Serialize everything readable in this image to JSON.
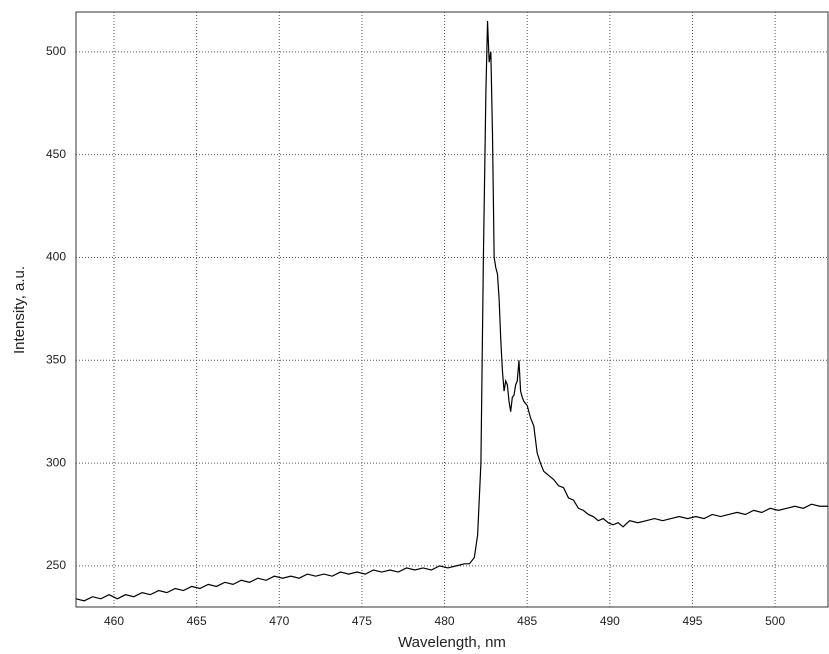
{
  "chart_data": {
    "type": "line",
    "x_label": "Wavelength, nm",
    "y_label": "Intensity, a.u.",
    "x": [
      457.7,
      458.2,
      458.7,
      459.2,
      459.7,
      460.2,
      460.7,
      461.2,
      461.7,
      462.2,
      462.7,
      463.2,
      463.7,
      464.2,
      464.7,
      465.2,
      465.7,
      466.2,
      466.7,
      467.2,
      467.7,
      468.2,
      468.7,
      469.2,
      469.7,
      470.2,
      470.7,
      471.2,
      471.7,
      472.2,
      472.7,
      473.2,
      473.7,
      474.2,
      474.7,
      475.2,
      475.7,
      476.2,
      476.7,
      477.2,
      477.7,
      478.2,
      478.7,
      479.2,
      479.7,
      480.2,
      480.7,
      481.2,
      481.5,
      481.8,
      482.0,
      482.2,
      482.35,
      482.5,
      482.6,
      482.7,
      482.8,
      482.9,
      483.0,
      483.1,
      483.2,
      483.3,
      483.4,
      483.5,
      483.6,
      483.7,
      483.8,
      483.9,
      484.0,
      484.1,
      484.2,
      484.3,
      484.4,
      484.5,
      484.6,
      484.7,
      484.8,
      485.0,
      485.2,
      485.4,
      485.6,
      485.8,
      486.0,
      486.3,
      486.6,
      486.9,
      487.2,
      487.5,
      487.8,
      488.1,
      488.4,
      488.7,
      489.0,
      489.3,
      489.6,
      489.9,
      490.2,
      490.5,
      490.8,
      491.2,
      491.7,
      492.2,
      492.7,
      493.2,
      493.7,
      494.2,
      494.7,
      495.2,
      495.7,
      496.2,
      496.7,
      497.2,
      497.7,
      498.2,
      498.7,
      499.2,
      499.7,
      500.2,
      500.7,
      501.2,
      501.7,
      502.2,
      502.7,
      503.2
    ],
    "values": [
      234,
      233,
      235,
      234,
      236,
      234,
      236,
      235,
      237,
      236,
      238,
      237,
      239,
      238,
      240,
      239,
      241,
      240,
      242,
      241,
      243,
      242,
      244,
      243,
      245,
      244,
      245,
      244,
      246,
      245,
      246,
      245,
      247,
      246,
      247,
      246,
      248,
      247,
      248,
      247,
      249,
      248,
      249,
      248,
      250,
      249,
      250,
      251,
      251,
      254,
      265,
      300,
      400,
      480,
      515,
      495,
      500,
      460,
      400,
      395,
      392,
      380,
      360,
      345,
      335,
      340,
      338,
      330,
      325,
      332,
      333,
      338,
      340,
      350,
      335,
      332,
      330,
      328,
      322,
      318,
      305,
      300,
      296,
      294,
      292,
      289,
      288,
      283,
      282,
      278,
      277,
      275,
      274,
      272,
      273,
      271,
      270,
      271,
      269,
      272,
      271,
      272,
      273,
      272,
      273,
      274,
      273,
      274,
      273,
      275,
      274,
      275,
      276,
      275,
      277,
      276,
      278,
      277,
      278,
      279,
      278,
      280,
      279,
      279
    ],
    "color": "#000000",
    "xlim": [
      457.7,
      503.2
    ],
    "ylim": [
      230,
      519.4
    ],
    "xticks": [
      460,
      465,
      470,
      475,
      480,
      485,
      490,
      495,
      500
    ],
    "yticks": [
      250,
      300,
      350,
      400,
      450,
      500
    ],
    "grid": true
  }
}
